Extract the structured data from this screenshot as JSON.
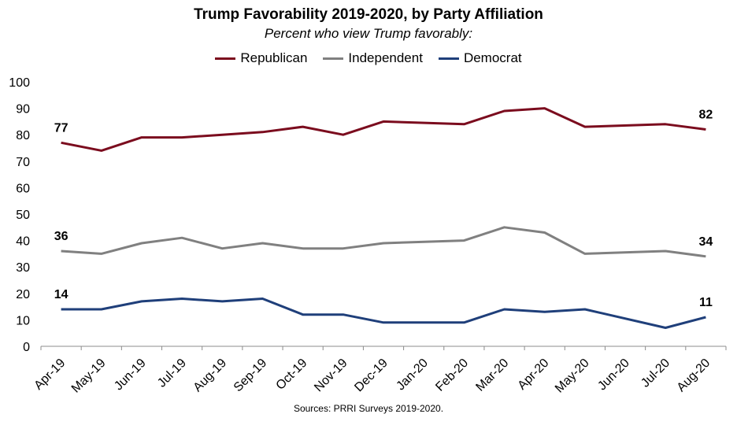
{
  "title": "Trump Favorability 2019-2020, by Party Affiliation",
  "subtitle": "Percent who view Trump favorably:",
  "source": "Sources: PRRI Surveys 2019-2020.",
  "chart_data": {
    "type": "line",
    "title": "Trump Favorability 2019-2020, by Party Affiliation",
    "subtitle": "Percent who view Trump favorably:",
    "xlabel": "",
    "ylabel": "",
    "ylim": [
      0,
      100
    ],
    "yticks": [
      0,
      10,
      20,
      30,
      40,
      50,
      60,
      70,
      80,
      90,
      100
    ],
    "grid": false,
    "legend_position": "top-center",
    "categories": [
      "Apr-19",
      "May-19",
      "Jun-19",
      "Jul-19",
      "Aug-19",
      "Sep-19",
      "Oct-19",
      "Nov-19",
      "Dec-19",
      "Jan-20",
      "Feb-20",
      "Mar-20",
      "Apr-20",
      "May-20",
      "Jun-20",
      "Jul-20",
      "Aug-20"
    ],
    "series": [
      {
        "name": "Republican",
        "color": "#7b0c1e",
        "values": [
          77,
          74,
          79,
          79,
          80,
          81,
          83,
          80,
          85,
          null,
          84,
          89,
          90,
          83,
          null,
          84,
          82
        ],
        "data_labels": [
          {
            "index": 0,
            "text": "77"
          },
          {
            "index": 16,
            "text": "82"
          }
        ]
      },
      {
        "name": "Independent",
        "color": "#808080",
        "values": [
          36,
          35,
          39,
          41,
          37,
          39,
          37,
          37,
          39,
          null,
          40,
          45,
          43,
          35,
          null,
          36,
          34
        ],
        "data_labels": [
          {
            "index": 0,
            "text": "36"
          },
          {
            "index": 16,
            "text": "34"
          }
        ]
      },
      {
        "name": "Democrat",
        "color": "#1f3f7a",
        "values": [
          14,
          14,
          17,
          18,
          17,
          18,
          12,
          12,
          9,
          9,
          9,
          14,
          13,
          14,
          null,
          7,
          11
        ],
        "data_labels": [
          {
            "index": 0,
            "text": "14"
          },
          {
            "index": 16,
            "text": "11"
          }
        ]
      }
    ]
  }
}
